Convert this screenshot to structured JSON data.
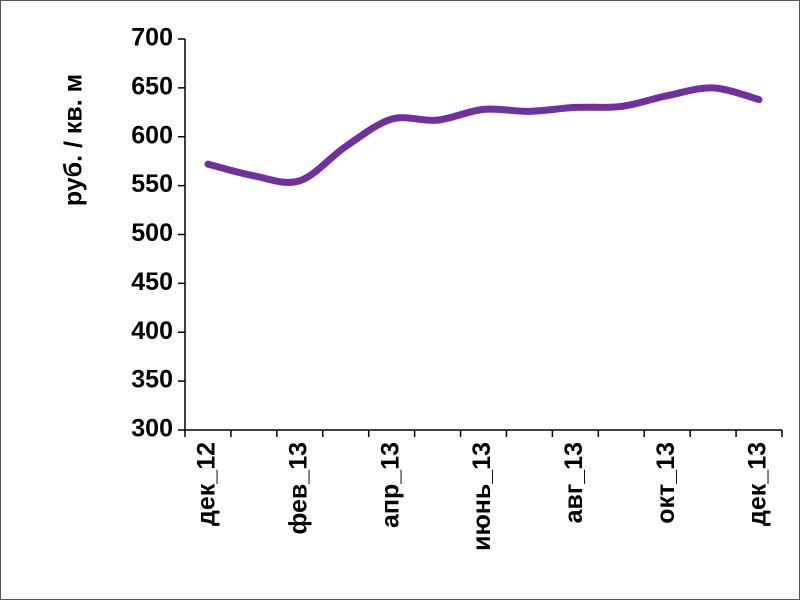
{
  "chart_data": {
    "type": "line",
    "y_label": "руб. / кв. м",
    "categories": [
      "дек_12",
      null,
      "фев_13",
      null,
      "апр_13",
      null,
      "июнь_13",
      null,
      "авг_13",
      null,
      "окт_13",
      null,
      "дек_13"
    ],
    "series": [
      {
        "color": "#7030a0",
        "values": [
          572,
          560,
          555,
          590,
          618,
          617,
          628,
          626,
          630,
          631,
          642,
          650,
          638
        ]
      }
    ],
    "ylim": [
      300,
      700
    ],
    "yticks": [
      300,
      350,
      400,
      450,
      500,
      550,
      600,
      650,
      700
    ]
  }
}
